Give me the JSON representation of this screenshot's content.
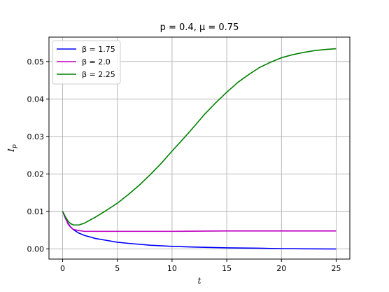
{
  "chart_data": {
    "type": "line",
    "title": "p = 0.4, μ = 0.75",
    "xlabel": "t",
    "ylabel": "I_p",
    "xlim": [
      -1.25,
      26.25
    ],
    "ylim": [
      -0.0027,
      0.0565
    ],
    "xticks": [
      0,
      5,
      10,
      15,
      20,
      25
    ],
    "xtick_labels": [
      "0",
      "5",
      "10",
      "15",
      "20",
      "25"
    ],
    "yticks": [
      0.0,
      0.01,
      0.02,
      0.03,
      0.04,
      0.05
    ],
    "ytick_labels": [
      "0.00",
      "0.01",
      "0.02",
      "0.03",
      "0.04",
      "0.05"
    ],
    "grid": true,
    "legend_position": "top-left",
    "series": [
      {
        "name": "β = 1.75",
        "color": "#0000ff",
        "x": [
          0,
          0.25,
          0.5,
          0.75,
          1,
          1.5,
          2,
          3,
          4,
          5,
          6,
          8,
          10,
          12,
          15,
          18,
          20,
          22,
          25
        ],
        "y": [
          0.01,
          0.0082,
          0.0068,
          0.0058,
          0.0051,
          0.0042,
          0.0036,
          0.0028,
          0.0023,
          0.0018,
          0.0015,
          0.001,
          0.0007,
          0.0005,
          0.0003,
          0.0002,
          0.0001,
          5e-05,
          0.0
        ]
      },
      {
        "name": "β = 2.0",
        "color": "#bf00bf",
        "x": [
          0,
          0.25,
          0.5,
          0.75,
          1,
          1.5,
          2,
          3,
          5,
          10,
          15,
          20,
          25
        ],
        "y": [
          0.01,
          0.0083,
          0.0066,
          0.0057,
          0.0052,
          0.0049,
          0.0047,
          0.0047,
          0.0047,
          0.0047,
          0.0048,
          0.0048,
          0.0048
        ]
      },
      {
        "name": "β = 2.25",
        "color": "#008000",
        "x": [
          0,
          0.25,
          0.5,
          0.75,
          1,
          1.5,
          2,
          3,
          4,
          5,
          6,
          7,
          8,
          9,
          10,
          11,
          12,
          13,
          14,
          15,
          16,
          17,
          18,
          19,
          20,
          21,
          22,
          23,
          24,
          25
        ],
        "y": [
          0.01,
          0.0086,
          0.0074,
          0.0067,
          0.0064,
          0.0064,
          0.0069,
          0.0085,
          0.0103,
          0.0122,
          0.0145,
          0.017,
          0.0198,
          0.0228,
          0.0261,
          0.0293,
          0.0326,
          0.036,
          0.039,
          0.0418,
          0.0444,
          0.0465,
          0.0484,
          0.0498,
          0.051,
          0.0518,
          0.0524,
          0.0529,
          0.0532,
          0.0534
        ]
      }
    ]
  }
}
